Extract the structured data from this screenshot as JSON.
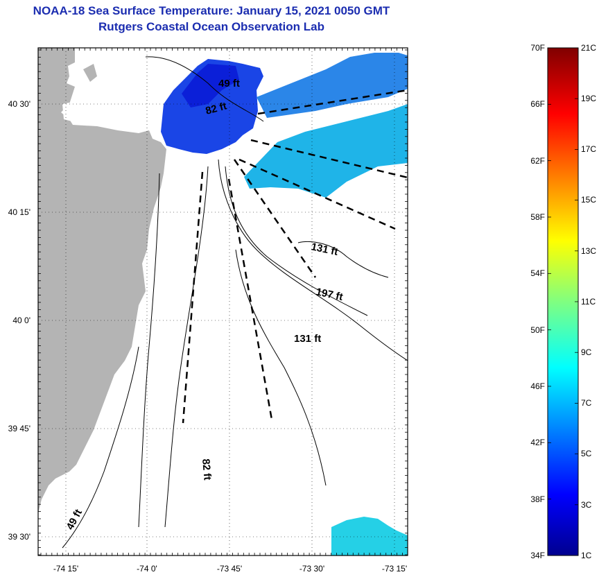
{
  "header": {
    "title": "NOAA-18 Sea Surface Temperature:  January 15, 2021 0050 GMT",
    "subtitle": "Rutgers Coastal Ocean Observation Lab"
  },
  "map": {
    "y_ticks": [
      "40 30'",
      "40 15'",
      "40 0'",
      "39 45'",
      "39 30'"
    ],
    "x_ticks": [
      "-74 15'",
      "-74 0'",
      "-73 45'",
      "-73 30'",
      "-73 15'"
    ],
    "contour_labels": [
      "49 ft",
      "82 ft",
      "131 ft",
      "197 ft",
      "131 ft",
      "82 ft",
      "49 ft"
    ],
    "colors": {
      "land": "#b4b4b4",
      "frame": "#000000"
    }
  },
  "colorbar": {
    "f_labels": [
      "70F",
      "66F",
      "62F",
      "58F",
      "54F",
      "50F",
      "46F",
      "42F",
      "38F",
      "34F"
    ],
    "c_labels": [
      "21C",
      "19C",
      "17C",
      "15C",
      "13C",
      "11C",
      "9C",
      "7C",
      "5C",
      "3C",
      "1C"
    ],
    "colormap": "jet"
  }
}
